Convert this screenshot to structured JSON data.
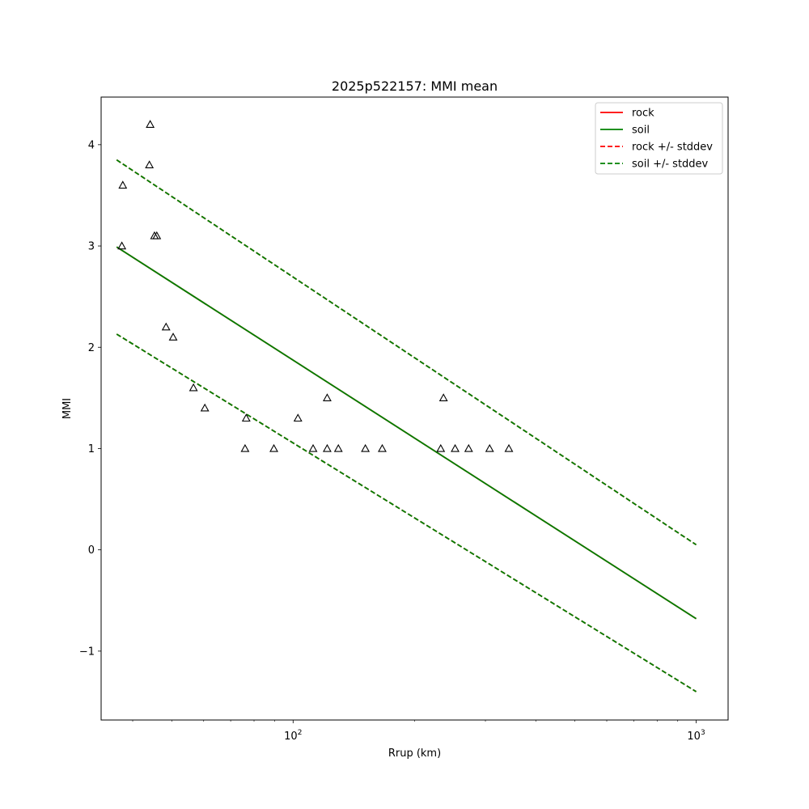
{
  "chart_data": {
    "type": "scatter",
    "title": "2025p522157: MMI mean",
    "xlabel": "Rrup (km)",
    "ylabel": "MMI",
    "xscale": "log",
    "xlim": [
      33.4,
      1200
    ],
    "ylim": [
      -1.68,
      4.47
    ],
    "x_ticks": [
      {
        "value": 100,
        "base": "10",
        "exp": "2"
      },
      {
        "value": 1000,
        "base": "10",
        "exp": "3"
      }
    ],
    "y_ticks": [
      {
        "value": -1,
        "label": "−1"
      },
      {
        "value": 0,
        "label": "0"
      },
      {
        "value": 1,
        "label": "1"
      },
      {
        "value": 2,
        "label": "2"
      },
      {
        "value": 3,
        "label": "3"
      },
      {
        "value": 4,
        "label": "4"
      }
    ],
    "legend": {
      "position": "top-right",
      "entries": [
        {
          "label": "rock",
          "color": "#ff0000",
          "style": "solid"
        },
        {
          "label": "soil",
          "color": "#008000",
          "style": "solid"
        },
        {
          "label": "rock +/- stddev",
          "color": "#ff0000",
          "style": "dashed"
        },
        {
          "label": "soil +/- stddev",
          "color": "#008000",
          "style": "dashed"
        }
      ]
    },
    "lines": [
      {
        "name": "rock",
        "color": "#ff0000",
        "style": "solid",
        "x": [
          36.5,
          1000
        ],
        "y": [
          2.99,
          -0.68
        ]
      },
      {
        "name": "soil",
        "color": "#008000",
        "style": "solid",
        "x": [
          36.5,
          1000
        ],
        "y": [
          2.99,
          -0.68
        ]
      },
      {
        "name": "rock +/- stddev",
        "color": "#ff0000",
        "style": "dashed",
        "x": [
          36.5,
          1000
        ],
        "y": [
          3.85,
          0.05
        ]
      },
      {
        "name": "rock +/- stddev",
        "color": "#ff0000",
        "style": "dashed",
        "x": [
          36.5,
          1000
        ],
        "y": [
          2.13,
          -1.4
        ]
      },
      {
        "name": "soil +/- stddev",
        "color": "#008000",
        "style": "dashed",
        "x": [
          36.5,
          1000
        ],
        "y": [
          3.85,
          0.05
        ]
      },
      {
        "name": "soil +/- stddev",
        "color": "#008000",
        "style": "dashed",
        "x": [
          36.5,
          1000
        ],
        "y": [
          2.13,
          -1.4
        ]
      }
    ],
    "points": {
      "marker": "triangle",
      "x": [
        37.8,
        37.6,
        44.2,
        44.0,
        45.3,
        45.9,
        48.4,
        50.4,
        56.6,
        60.4,
        76.0,
        76.5,
        89.6,
        102.8,
        112.1,
        121.5,
        121.5,
        129.5,
        151.1,
        166.4,
        232.4,
        236.1,
        252.3,
        272.6,
        307.3,
        343.0
      ],
      "y": [
        3.6,
        3.0,
        4.2,
        3.8,
        3.1,
        3.1,
        2.2,
        2.1,
        1.6,
        1.4,
        1.0,
        1.3,
        1.0,
        1.3,
        1.0,
        1.0,
        1.5,
        1.0,
        1.0,
        1.0,
        1.0,
        1.5,
        1.0,
        1.0,
        1.0,
        1.0
      ]
    }
  }
}
